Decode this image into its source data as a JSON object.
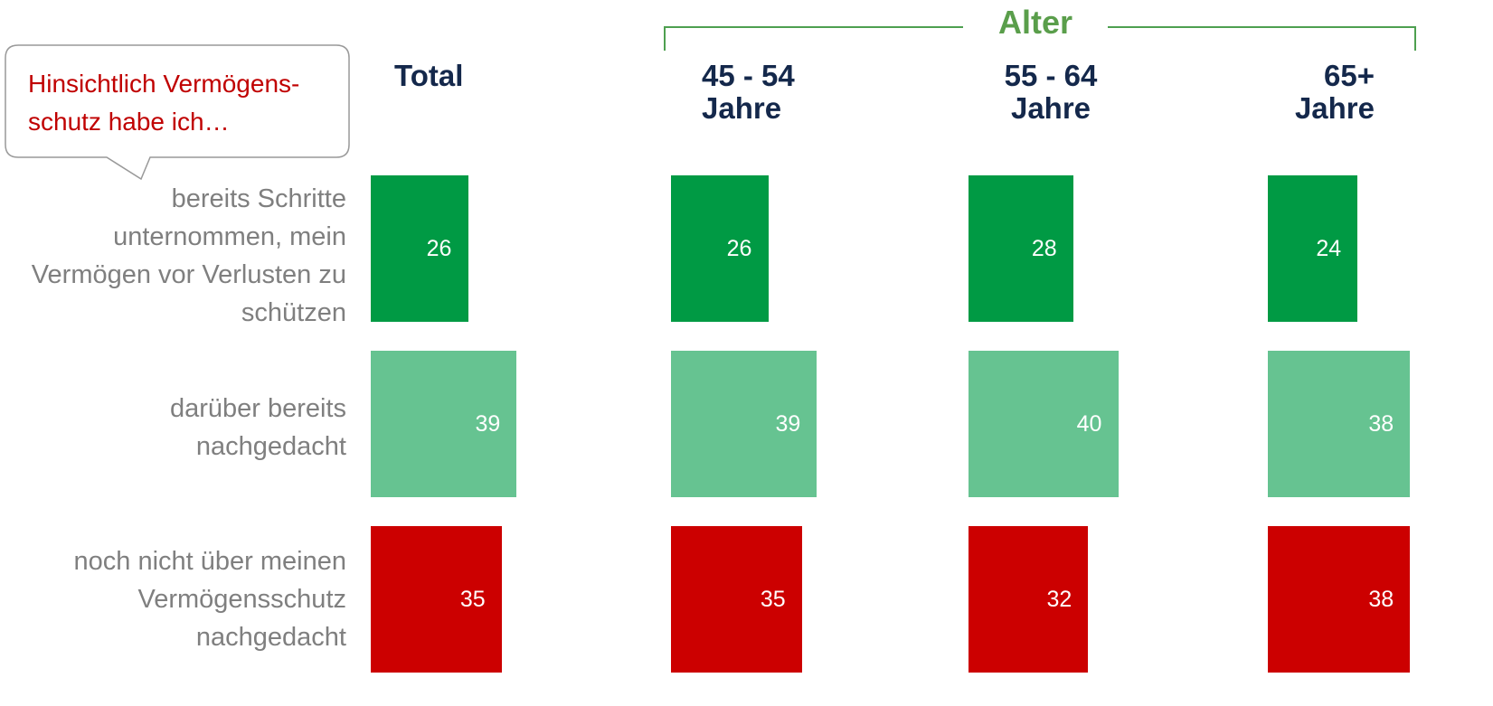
{
  "chart_data": {
    "type": "bar",
    "orientation": "horizontal",
    "callout": [
      "Hinsichtlich Vermögens-",
      "schutz habe ich…"
    ],
    "group_label": "Alter",
    "categories": [
      "bereits Schritte unternommen, mein Vermögen vor Verlusten zu schützen",
      "darüber bereits nachgedacht",
      "noch nicht über meinen Vermögensschutz nachgedacht"
    ],
    "colors": [
      "#009a44",
      "#66c391",
      "#cc0000"
    ],
    "series": [
      {
        "name": "Total",
        "values": [
          26,
          39,
          35
        ]
      },
      {
        "name": "45 - 54 Jahre",
        "values": [
          26,
          39,
          35
        ]
      },
      {
        "name": "55 - 64 Jahre",
        "values": [
          28,
          40,
          32
        ]
      },
      {
        "name": "65+ Jahre",
        "values": [
          24,
          38,
          38
        ]
      }
    ]
  }
}
